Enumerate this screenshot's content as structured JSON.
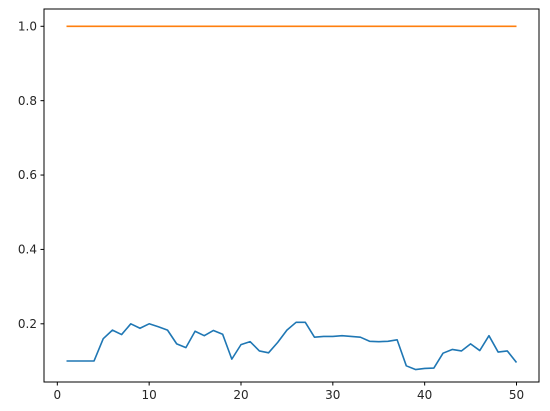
{
  "chart_data": {
    "type": "line",
    "title": "",
    "xlabel": "",
    "ylabel": "",
    "xlim": [
      -1.45,
      52.45
    ],
    "ylim": [
      0.0435,
      1.0465
    ],
    "x_ticks": [
      0,
      10,
      20,
      30,
      40,
      50
    ],
    "x_tick_labels": [
      "0",
      "10",
      "20",
      "30",
      "40",
      "50"
    ],
    "y_ticks": [
      0.2,
      0.4,
      0.6,
      0.8,
      1.0
    ],
    "y_tick_labels": [
      "0.2",
      "0.4",
      "0.6",
      "0.8",
      "1.0"
    ],
    "grid": false,
    "legend": "none",
    "x": [
      1,
      2,
      3,
      4,
      5,
      6,
      7,
      8,
      9,
      10,
      11,
      12,
      13,
      14,
      15,
      16,
      17,
      18,
      19,
      20,
      21,
      22,
      23,
      24,
      25,
      26,
      27,
      28,
      29,
      30,
      31,
      32,
      33,
      34,
      35,
      36,
      37,
      38,
      39,
      40,
      41,
      42,
      43,
      44,
      45,
      46,
      47,
      48,
      49,
      50
    ],
    "series": [
      {
        "color": "#1f77b4",
        "values": [
          0.1,
          0.1,
          0.1,
          0.1,
          0.16,
          0.183,
          0.171,
          0.2,
          0.188,
          0.2,
          0.192,
          0.183,
          0.146,
          0.136,
          0.18,
          0.168,
          0.182,
          0.172,
          0.105,
          0.144,
          0.152,
          0.127,
          0.122,
          0.15,
          0.183,
          0.204,
          0.204,
          0.164,
          0.166,
          0.166,
          0.168,
          0.166,
          0.164,
          0.153,
          0.152,
          0.153,
          0.157,
          0.087,
          0.077,
          0.08,
          0.081,
          0.121,
          0.131,
          0.127,
          0.146,
          0.128,
          0.168,
          0.124,
          0.127,
          0.096
        ]
      },
      {
        "color": "#ff7f0e",
        "values": [
          1,
          1,
          1,
          1,
          1,
          1,
          1,
          1,
          1,
          1,
          1,
          1,
          1,
          1,
          1,
          1,
          1,
          1,
          1,
          1,
          1,
          1,
          1,
          1,
          1,
          1,
          1,
          1,
          1,
          1,
          1,
          1,
          1,
          1,
          1,
          1,
          1,
          1,
          1,
          1,
          1,
          1,
          1,
          1,
          1,
          1,
          1,
          1,
          1,
          1
        ]
      }
    ]
  }
}
